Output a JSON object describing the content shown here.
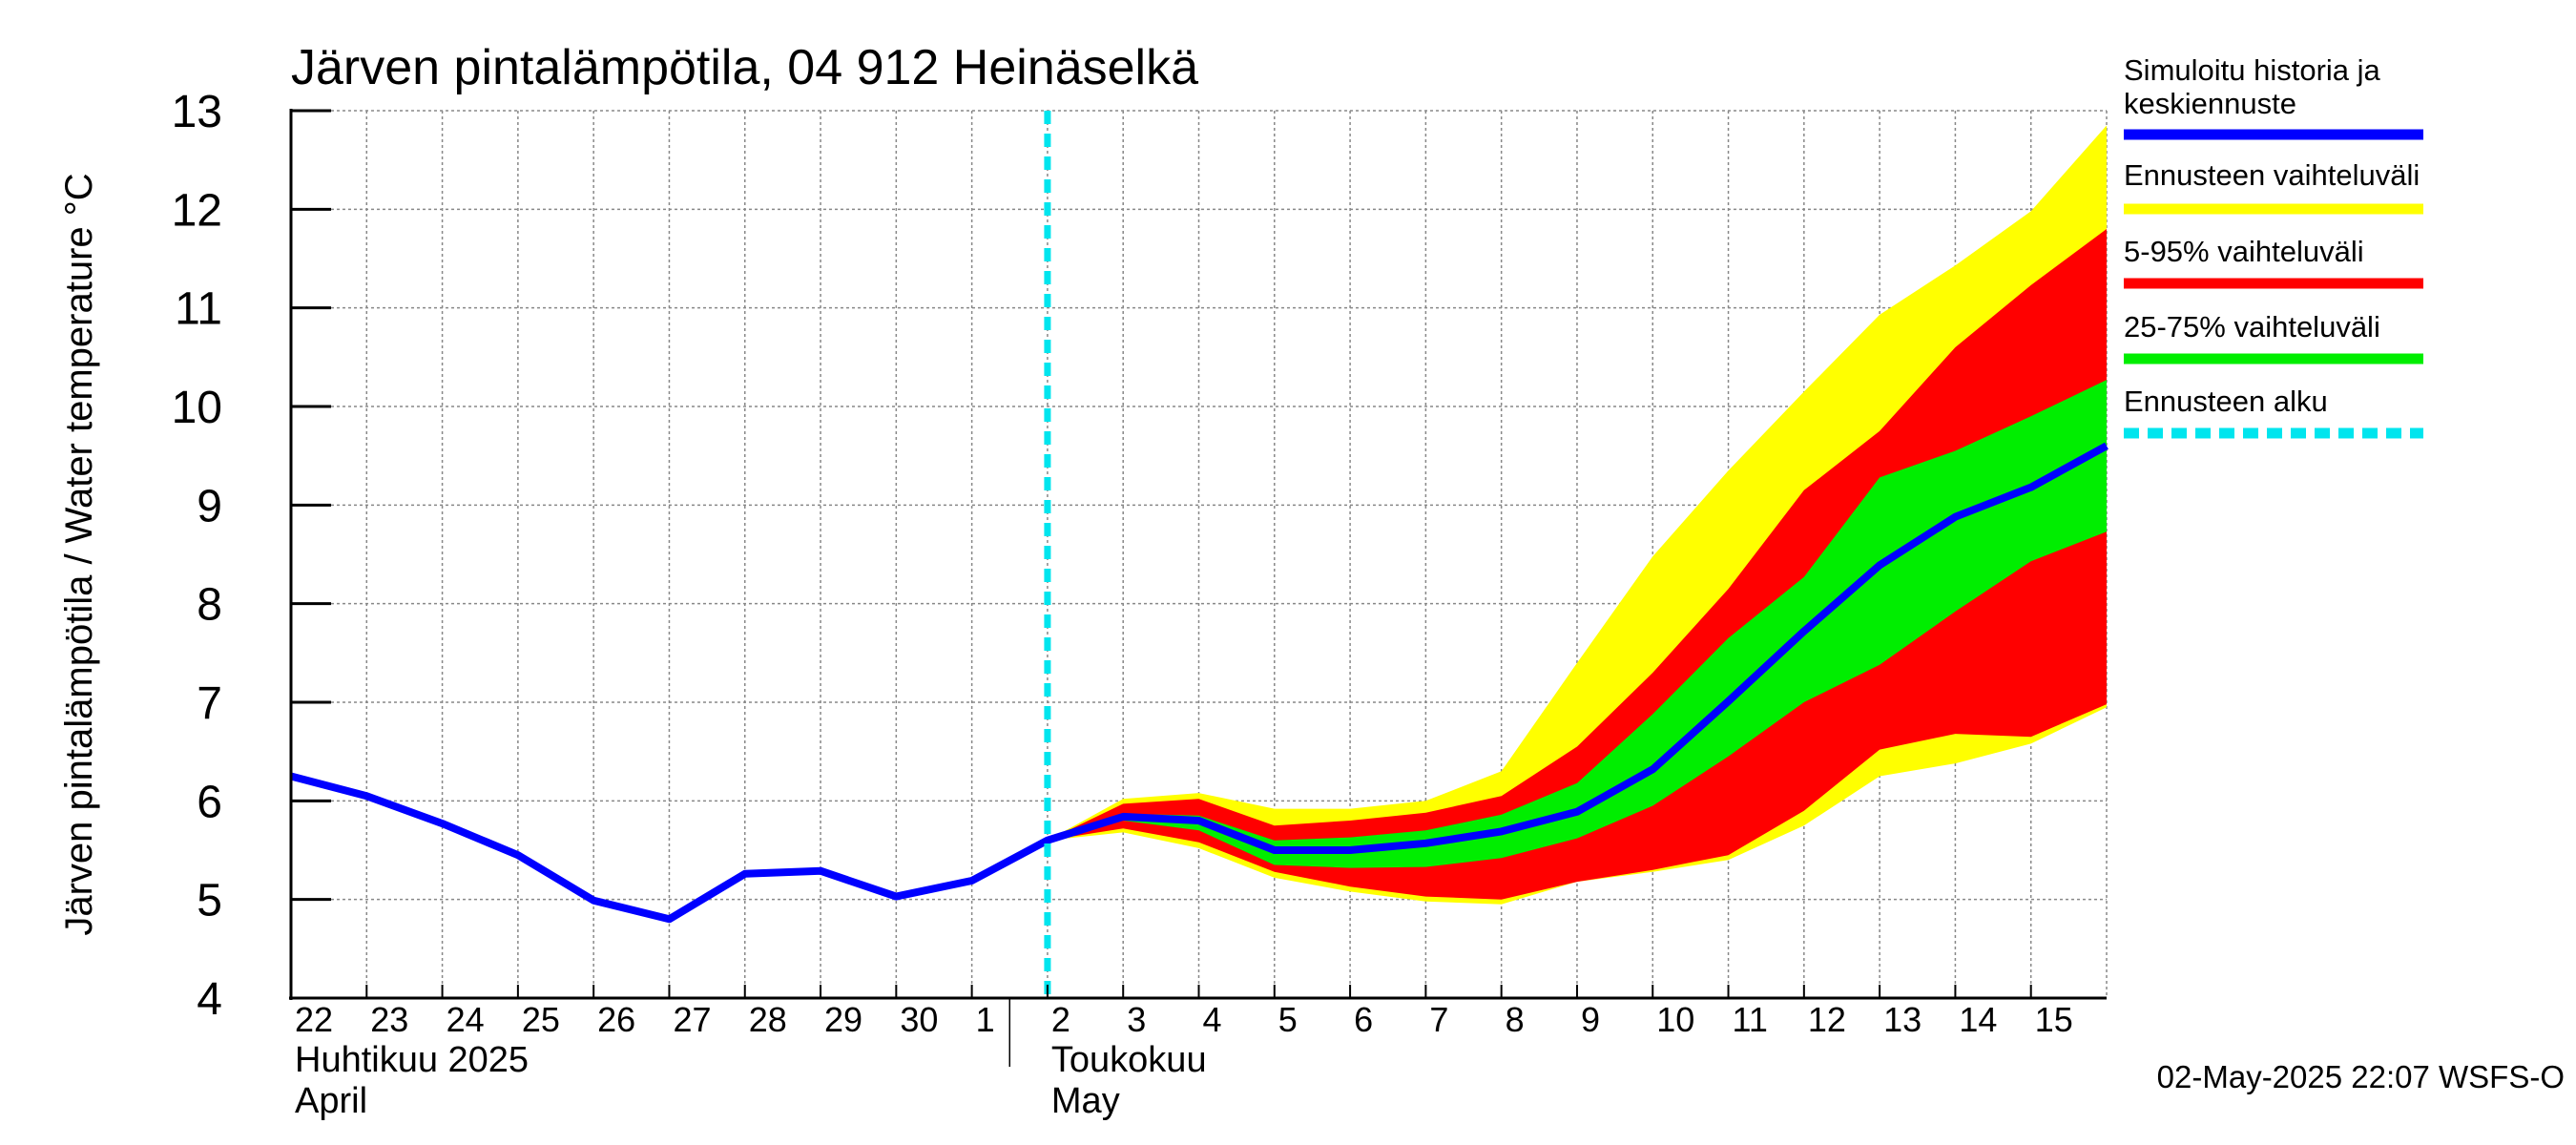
{
  "chart_data": {
    "type": "area",
    "title": "Järven pintalämpötila, 04 912 Heinäselkä",
    "ylabel": "Järven pintalämpötila / Water temperature °C",
    "ylim": [
      4,
      13
    ],
    "yticks": [
      "4",
      "5",
      "6",
      "7",
      "8",
      "9",
      "10",
      "11",
      "12",
      "13"
    ],
    "grid": true,
    "legend_position": "right",
    "x_start": "2025-04-22",
    "x_end": "2025-05-16",
    "x_tick_labels": [
      {
        "date": "2025-04-22",
        "label": "22"
      },
      {
        "date": "2025-04-23",
        "label": "23"
      },
      {
        "date": "2025-04-24",
        "label": "24"
      },
      {
        "date": "2025-04-25",
        "label": "25"
      },
      {
        "date": "2025-04-26",
        "label": "26"
      },
      {
        "date": "2025-04-27",
        "label": "27"
      },
      {
        "date": "2025-04-28",
        "label": "28"
      },
      {
        "date": "2025-04-29",
        "label": "29"
      },
      {
        "date": "2025-04-30",
        "label": "30"
      },
      {
        "date": "2025-05-01",
        "label": "1"
      },
      {
        "date": "2025-05-02",
        "label": "2"
      },
      {
        "date": "2025-05-03",
        "label": "3"
      },
      {
        "date": "2025-05-04",
        "label": "4"
      },
      {
        "date": "2025-05-05",
        "label": "5"
      },
      {
        "date": "2025-05-06",
        "label": "6"
      },
      {
        "date": "2025-05-07",
        "label": "7"
      },
      {
        "date": "2025-05-08",
        "label": "8"
      },
      {
        "date": "2025-05-09",
        "label": "9"
      },
      {
        "date": "2025-05-10",
        "label": "10"
      },
      {
        "date": "2025-05-11",
        "label": "11"
      },
      {
        "date": "2025-05-12",
        "label": "12"
      },
      {
        "date": "2025-05-13",
        "label": "13"
      },
      {
        "date": "2025-05-14",
        "label": "14"
      },
      {
        "date": "2025-05-15",
        "label": "15"
      }
    ],
    "months": [
      {
        "date": "2025-04-22",
        "fi": "Huhtikuu  2025",
        "en": "April"
      },
      {
        "date": "2025-05-02",
        "fi": "Toukokuu",
        "en": "May"
      }
    ],
    "month_separator": "2025-05-01T12:00",
    "forecast_start": "2025-05-02T00:00",
    "dates": [
      "2025-04-22",
      "2025-04-23",
      "2025-04-24",
      "2025-04-25",
      "2025-04-26",
      "2025-04-27",
      "2025-04-28",
      "2025-04-29",
      "2025-04-30",
      "2025-05-01",
      "2025-05-02",
      "2025-05-03",
      "2025-05-04",
      "2025-05-05",
      "2025-05-06",
      "2025-05-07",
      "2025-05-08",
      "2025-05-09",
      "2025-05-10",
      "2025-05-11",
      "2025-05-12",
      "2025-05-13",
      "2025-05-14",
      "2025-05-15",
      "2025-05-16"
    ],
    "series": [
      {
        "name": "Simuloitu historia ja keskiennuste",
        "color": "#0000ff",
        "values": [
          6.25,
          6.05,
          5.77,
          5.45,
          4.99,
          4.8,
          5.26,
          5.29,
          5.03,
          5.19,
          5.6,
          5.84,
          5.8,
          5.5,
          5.5,
          5.57,
          5.69,
          5.89,
          6.32,
          7.01,
          7.72,
          8.39,
          8.88,
          9.18,
          9.6
        ]
      }
    ],
    "bands": [
      {
        "name": "Ennusteen vaihteluväli",
        "color": "#ffff00",
        "dates": [
          "2025-05-02",
          "2025-05-03",
          "2025-05-04",
          "2025-05-05",
          "2025-05-06",
          "2025-05-07",
          "2025-05-08",
          "2025-05-09",
          "2025-05-10",
          "2025-05-11",
          "2025-05-12",
          "2025-05-13",
          "2025-05-14",
          "2025-05-15",
          "2025-05-16"
        ],
        "upper": [
          5.6,
          6.02,
          6.08,
          5.92,
          5.92,
          6.0,
          6.3,
          7.4,
          8.48,
          9.35,
          10.15,
          10.93,
          11.43,
          11.98,
          12.85
        ],
        "lower": [
          5.6,
          5.68,
          5.52,
          5.22,
          5.08,
          4.98,
          4.95,
          5.18,
          5.28,
          5.4,
          5.75,
          6.25,
          6.38,
          6.58,
          6.95
        ]
      },
      {
        "name": "5-95% vaihteluväli",
        "color": "#ff0000",
        "dates": [
          "2025-05-02",
          "2025-05-03",
          "2025-05-04",
          "2025-05-05",
          "2025-05-06",
          "2025-05-07",
          "2025-05-08",
          "2025-05-09",
          "2025-05-10",
          "2025-05-11",
          "2025-05-12",
          "2025-05-13",
          "2025-05-14",
          "2025-05-15",
          "2025-05-16"
        ],
        "upper": [
          5.6,
          5.97,
          6.02,
          5.75,
          5.8,
          5.88,
          6.05,
          6.55,
          7.3,
          8.15,
          9.15,
          9.75,
          10.6,
          11.23,
          11.8
        ],
        "lower": [
          5.6,
          5.72,
          5.58,
          5.28,
          5.13,
          5.03,
          5.0,
          5.18,
          5.3,
          5.45,
          5.9,
          6.52,
          6.68,
          6.65,
          6.98
        ]
      },
      {
        "name": "25-75% vaihteluväli",
        "color": "#00ee00",
        "dates": [
          "2025-05-02",
          "2025-05-03",
          "2025-05-04",
          "2025-05-05",
          "2025-05-06",
          "2025-05-07",
          "2025-05-08",
          "2025-05-09",
          "2025-05-10",
          "2025-05-11",
          "2025-05-12",
          "2025-05-13",
          "2025-05-14",
          "2025-05-15",
          "2025-05-16"
        ],
        "upper": [
          5.6,
          5.87,
          5.85,
          5.6,
          5.63,
          5.7,
          5.86,
          6.18,
          6.88,
          7.65,
          8.27,
          9.28,
          9.55,
          9.9,
          10.27
        ],
        "lower": [
          5.6,
          5.8,
          5.7,
          5.35,
          5.32,
          5.33,
          5.42,
          5.62,
          5.95,
          6.45,
          7.0,
          7.38,
          7.92,
          8.43,
          8.73
        ]
      }
    ]
  },
  "legend": [
    {
      "label_lines": [
        "Simuloitu historia ja",
        "keskiennuste"
      ],
      "color": "#0000ff",
      "style": "solid"
    },
    {
      "label_lines": [
        "Ennusteen vaihteluväli"
      ],
      "color": "#ffff00",
      "style": "solid"
    },
    {
      "label_lines": [
        "5-95% vaihteluväli"
      ],
      "color": "#ff0000",
      "style": "solid"
    },
    {
      "label_lines": [
        "25-75% vaihteluväli"
      ],
      "color": "#00ee00",
      "style": "solid"
    },
    {
      "label_lines": [
        "Ennusteen alku"
      ],
      "color": "#00e5ee",
      "style": "dashed"
    }
  ],
  "timestamp": "02-May-2025 22:07 WSFS-O",
  "colors": {
    "grid": "#888888",
    "axis": "#000000",
    "forecast_line": "#00e5ee"
  }
}
